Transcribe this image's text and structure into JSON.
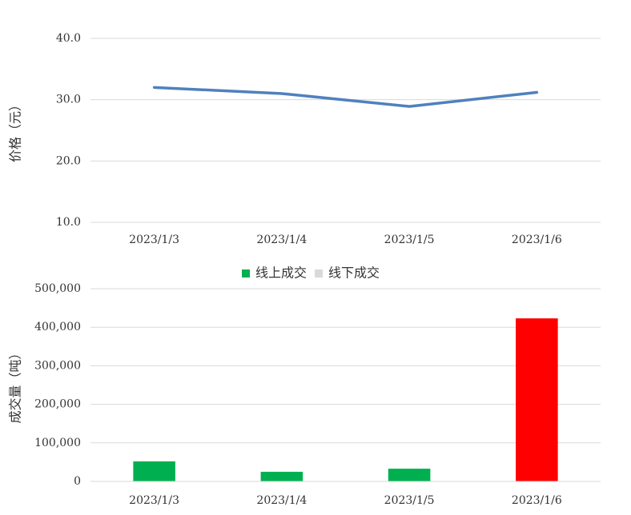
{
  "chart_data": [
    {
      "type": "line",
      "y_label": "价格（元）",
      "categories": [
        "2023/1/3",
        "2023/1/4",
        "2023/1/5",
        "2023/1/6"
      ],
      "series": [
        {
          "name": "价格",
          "color": "#4f81bd",
          "values": [
            32.0,
            31.0,
            28.9,
            31.2
          ]
        }
      ],
      "ylim": [
        10,
        40
      ],
      "yticks": [
        {
          "value": 10,
          "label": "10.0"
        },
        {
          "value": 20,
          "label": "20.0"
        },
        {
          "value": 30,
          "label": "30.0"
        },
        {
          "value": 40,
          "label": "40.0"
        }
      ],
      "grid": true
    },
    {
      "type": "bar",
      "y_label": "成交量（吨）",
      "categories": [
        "2023/1/3",
        "2023/1/4",
        "2023/1/5",
        "2023/1/6"
      ],
      "series": [
        {
          "name": "线上成交",
          "color": "#00b050",
          "point_colors": [
            "#00b050",
            "#00b050",
            "#00b050",
            "#ff0000"
          ],
          "values": [
            52000,
            25000,
            33000,
            423000
          ]
        },
        {
          "name": "线下成交",
          "color": "#d9d9d9",
          "values": [
            null,
            null,
            null,
            null
          ]
        }
      ],
      "ylim": [
        0,
        500000
      ],
      "yticks": [
        0,
        {
          "value": 100000,
          "label": "100,000"
        },
        {
          "value": 200000,
          "label": "200,000"
        },
        {
          "value": 300000,
          "label": "300,000"
        },
        {
          "value": 400000,
          "label": "400,000"
        },
        {
          "value": 500000,
          "label": "500,000"
        }
      ],
      "grid": true,
      "legend": "top"
    }
  ]
}
